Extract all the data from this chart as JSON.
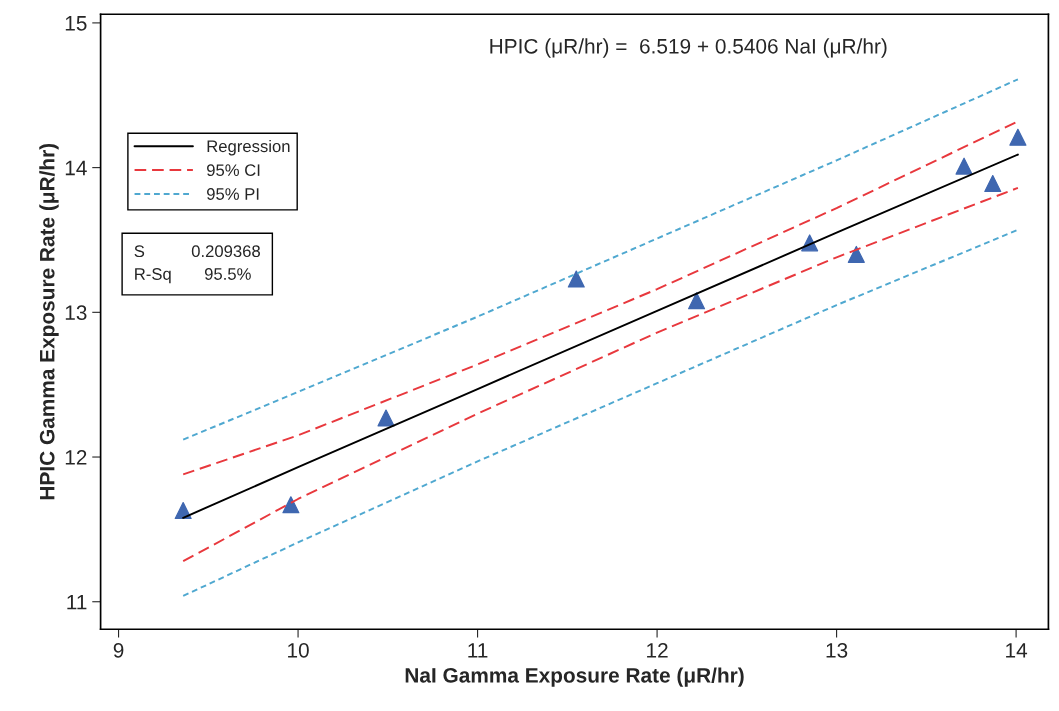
{
  "chart_data": {
    "type": "scatter",
    "xlabel": "NaI Gamma Exposure Rate (μR/hr)",
    "ylabel": "HPIC Gamma Exposure Rate (μR/hr)",
    "xlim": [
      8.9,
      14.18
    ],
    "ylim": [
      10.81,
      15.06
    ],
    "xticks": [
      9,
      10,
      11,
      12,
      13,
      14
    ],
    "yticks": [
      11,
      12,
      13,
      14,
      15
    ],
    "grid": false,
    "legend": "top left",
    "annotations": [
      "HPIC (μR/hr) =  6.519 + 0.5406 NaI (μR/hr)",
      "S          0.209368\nR-Sq       95.5%"
    ],
    "series": [
      {
        "color": "#3f67b0",
        "marker": "triangle",
        "x": [
          9.36,
          9.96,
          10.49,
          11.55,
          12.22,
          12.85,
          13.11,
          13.71,
          13.87,
          14.01
        ],
        "values": [
          11.63,
          11.67,
          12.27,
          13.23,
          13.08,
          13.48,
          13.4,
          14.01,
          13.89,
          14.21
        ]
      },
      {
        "type": "line",
        "name": "Regression",
        "color": "#000000",
        "line_style": "solid",
        "x": [
          9.36,
          10,
          11,
          12,
          13,
          14.01
        ],
        "values": [
          11.58,
          11.93,
          12.47,
          13.01,
          13.55,
          14.09
        ]
      },
      {
        "type": "line",
        "name": "95% CI",
        "color": "#e8383d",
        "line_style": "dashed",
        "x": [
          9.36,
          10,
          11,
          12,
          13,
          14.01
        ],
        "values": [
          11.88,
          12.15,
          12.64,
          13.16,
          13.72,
          14.32
        ]
      },
      {
        "type": "line",
        "color": "#e8383d",
        "line_style": "dashed",
        "x": [
          9.36,
          10,
          11,
          12,
          13,
          14.01
        ],
        "values": [
          11.28,
          11.71,
          12.3,
          12.86,
          13.38,
          13.86
        ]
      },
      {
        "type": "line",
        "name": "95% PI",
        "color": "#4fa8d0",
        "line_style": "dotted",
        "x": [
          9.36,
          10,
          11,
          12,
          13,
          14.01
        ],
        "values": [
          12.12,
          12.45,
          12.97,
          13.51,
          14.05,
          14.61
        ]
      },
      {
        "type": "line",
        "color": "#4fa8d0",
        "line_style": "dotted",
        "x": [
          9.36,
          10,
          11,
          12,
          13,
          14.01
        ],
        "values": [
          11.04,
          11.41,
          11.97,
          12.51,
          13.05,
          13.57
        ]
      }
    ]
  }
}
